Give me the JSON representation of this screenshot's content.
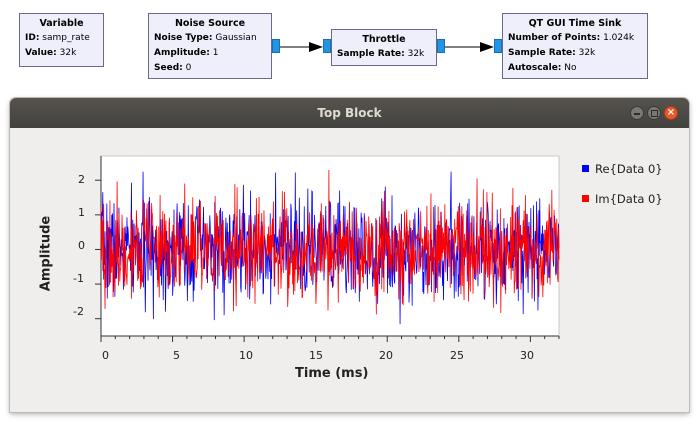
{
  "flowgraph": {
    "variable": {
      "title": "Variable",
      "rows": [
        {
          "k": "ID:",
          "v": "samp_rate"
        },
        {
          "k": "Value:",
          "v": "32k"
        }
      ]
    },
    "noise_source": {
      "title": "Noise Source",
      "rows": [
        {
          "k": "Noise Type:",
          "v": "Gaussian"
        },
        {
          "k": "Amplitude:",
          "v": "1"
        },
        {
          "k": "Seed:",
          "v": "0"
        }
      ]
    },
    "throttle": {
      "title": "Throttle",
      "rows": [
        {
          "k": "Sample Rate:",
          "v": "32k"
        }
      ]
    },
    "time_sink": {
      "title": "QT GUI Time Sink",
      "rows": [
        {
          "k": "Number of Points:",
          "v": "1.024k"
        },
        {
          "k": "Sample Rate:",
          "v": "32k"
        },
        {
          "k": "Autoscale:",
          "v": "No"
        }
      ]
    },
    "port_color": "#2196e8"
  },
  "window": {
    "title": "Top Block",
    "buttons": [
      "minimize-icon",
      "maximize-icon",
      "close-icon"
    ]
  },
  "chart_data": {
    "type": "line",
    "xlabel": "Time (ms)",
    "ylabel": "Amplitude",
    "xlim": [
      0,
      32
    ],
    "ylim": [
      -2.5,
      2.7
    ],
    "xticks": [
      "0",
      "5",
      "10",
      "15",
      "20",
      "25",
      "30"
    ],
    "yticks": [
      "2",
      "1",
      "0",
      "-1",
      "-2"
    ],
    "legend_position": "right",
    "series": [
      {
        "name": "Re{Data 0}",
        "color": "#0000ff",
        "seed": 7
      },
      {
        "name": "Im{Data 0}",
        "color": "#ff0000",
        "seed": 19
      }
    ],
    "num_points": 1024,
    "noise": "gaussian, std 1"
  }
}
